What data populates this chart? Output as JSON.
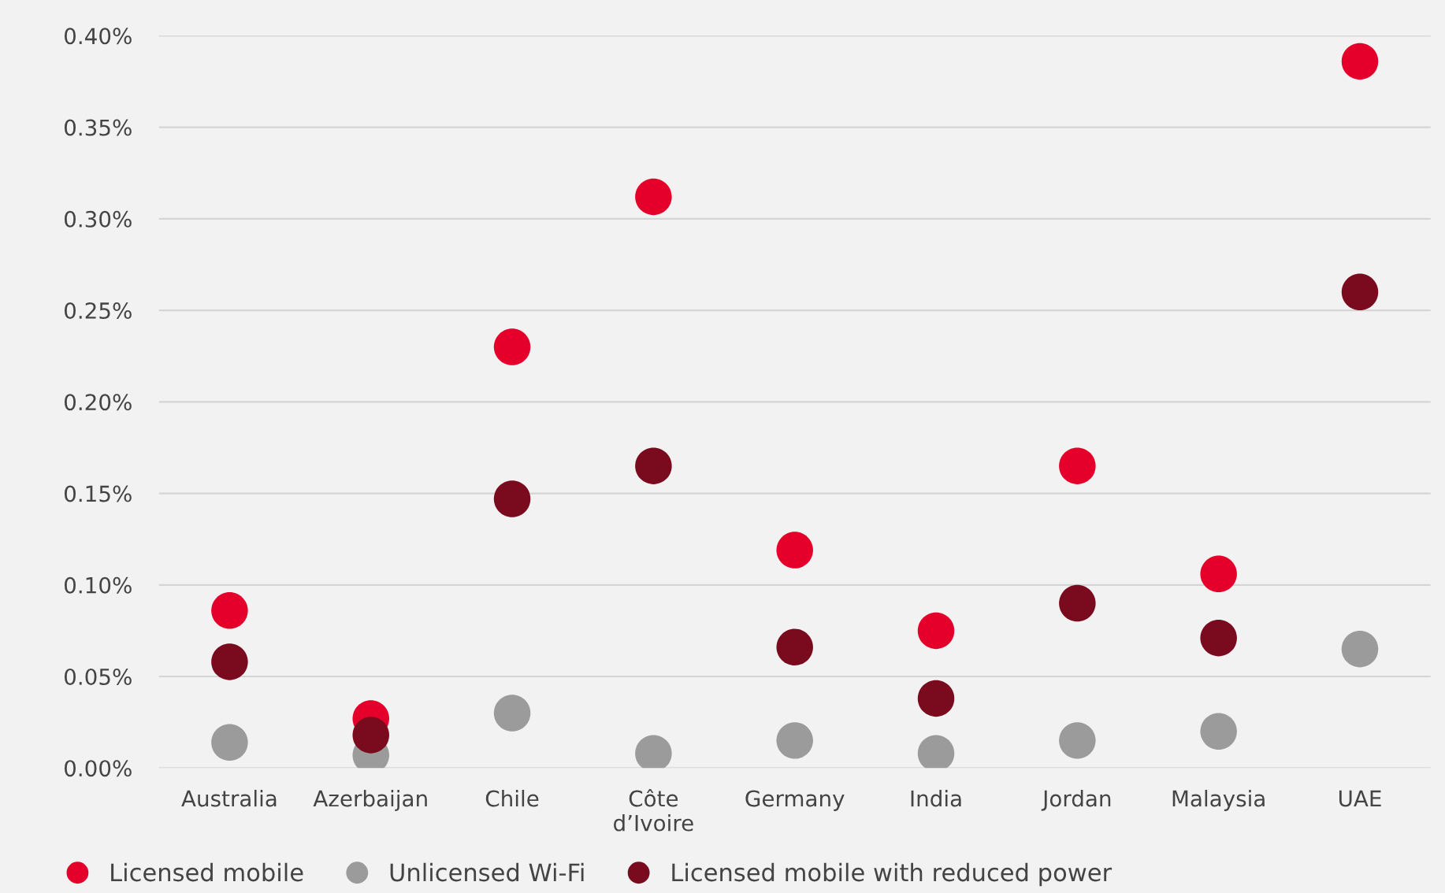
{
  "chart_data": {
    "type": "scatter",
    "categories": [
      "Australia",
      "Azerbaijan",
      "Chile",
      "Côte\nd’Ivoire",
      "Germany",
      "India",
      "Jordan",
      "Malaysia",
      "UAE"
    ],
    "series": [
      {
        "name": "Licensed mobile",
        "color": "#e4002b",
        "values": [
          0.086,
          0.027,
          0.23,
          0.312,
          0.119,
          0.075,
          0.165,
          0.106,
          0.386
        ]
      },
      {
        "name": "Unlicensed Wi-Fi",
        "color": "#9b9b9b",
        "values": [
          0.014,
          0.007,
          0.03,
          0.008,
          0.015,
          0.008,
          0.015,
          0.02,
          0.065
        ]
      },
      {
        "name": "Licensed mobile with reduced power",
        "color": "#7a0a1e",
        "values": [
          0.058,
          0.018,
          0.147,
          0.165,
          0.066,
          0.038,
          0.09,
          0.071,
          0.26
        ]
      }
    ],
    "ylim": [
      0,
      0.4
    ],
    "yticks": [
      {
        "value": 0,
        "label": "0.00%"
      },
      {
        "value": 0.05,
        "label": "0.05%"
      },
      {
        "value": 0.1,
        "label": "0.10%"
      },
      {
        "value": 0.15,
        "label": "0.15%"
      },
      {
        "value": 0.2,
        "label": "0.20%"
      },
      {
        "value": 0.25,
        "label": "0.25%"
      },
      {
        "value": 0.3,
        "label": "0.30%"
      },
      {
        "value": 0.35,
        "label": "0.35%"
      },
      {
        "value": 0.4,
        "label": "0.40%"
      }
    ],
    "grid": "y",
    "legend": "bottom",
    "marker": "circle"
  }
}
